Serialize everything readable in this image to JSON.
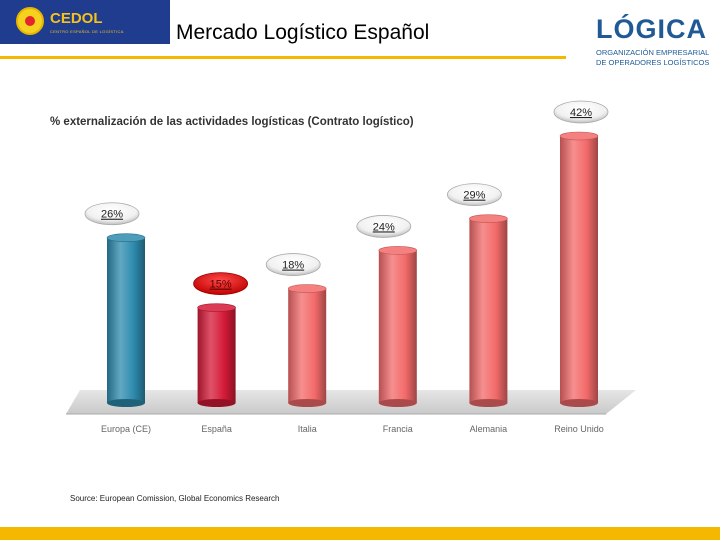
{
  "header": {
    "title": "Mercado Logístico Español",
    "left_logo": {
      "name": "CEDOL",
      "subtitle": "CENTRO ESPAÑOL DE LOGÍSTICA"
    },
    "right_logo": {
      "name": "LÓGICA",
      "subtitle_line1": "ORGANIZACIÓN EMPRESARIAL",
      "subtitle_line2": "DE OPERADORES LOGÍSTICOS"
    }
  },
  "colors": {
    "accent": "#f5b800",
    "brand_blue": "#1f3c8f"
  },
  "source": "Source: European Comission, Global Economics Research",
  "chart_data": {
    "type": "bar",
    "title": "% externalización de las actividades logísticas (Contrato logístico)",
    "categories": [
      "Europa (CE)",
      "España",
      "Italia",
      "Francia",
      "Alemania",
      "Reino Unido"
    ],
    "values": [
      26,
      15,
      18,
      24,
      29,
      42
    ],
    "labels": [
      "26%",
      "15%",
      "18%",
      "24%",
      "29%",
      "42%"
    ],
    "colors": [
      "#2e8bae",
      "#d41a38",
      "#f36a6a",
      "#f36a6a",
      "#f36a6a",
      "#f36a6a"
    ],
    "ylim": [
      0,
      42
    ],
    "grid": false
  }
}
